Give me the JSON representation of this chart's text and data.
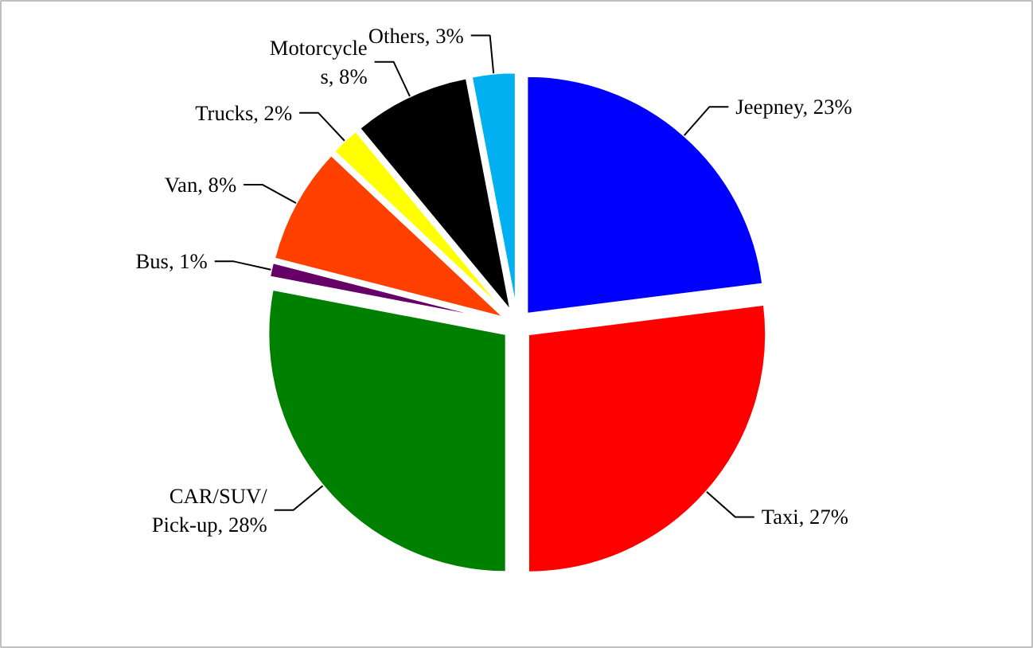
{
  "chart_data": {
    "type": "pie",
    "categories": [
      "Jeepney",
      "Taxi",
      "CAR/SUV/ Pick-up",
      "Bus",
      "Van",
      "Trucks",
      "Motorcycles",
      "Others"
    ],
    "values": [
      23,
      27,
      28,
      1,
      8,
      2,
      8,
      3
    ],
    "colors": [
      "#0000ff",
      "#ff0000",
      "#008000",
      "#660066",
      "#ff4000",
      "#ffff00",
      "#000000",
      "#00b0f0"
    ],
    "value_labels": [
      "23%",
      "27%",
      "28%",
      "1%",
      "8%",
      "2%",
      "8%",
      "3%"
    ]
  }
}
